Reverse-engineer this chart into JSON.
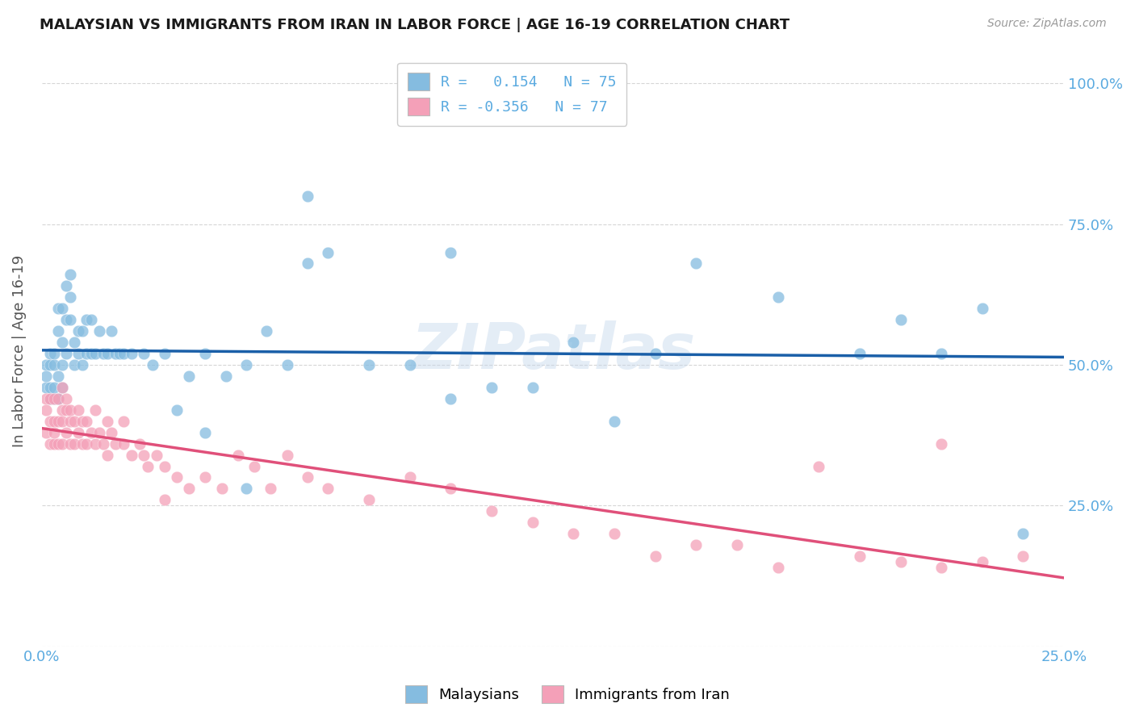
{
  "title": "MALAYSIAN VS IMMIGRANTS FROM IRAN IN LABOR FORCE | AGE 16-19 CORRELATION CHART",
  "source": "Source: ZipAtlas.com",
  "ylabel": "In Labor Force | Age 16-19",
  "xlim": [
    0.0,
    0.25
  ],
  "ylim": [
    0.0,
    1.05
  ],
  "blue_color": "#85bce0",
  "pink_color": "#f4a0b8",
  "trend_blue": "#1a5fa8",
  "trend_pink": "#e0507a",
  "axis_color": "#5aaae0",
  "watermark": "ZIPatlas",
  "legend_label_blue": "R =   0.154   N = 75",
  "legend_label_pink": "R = -0.356   N = 77",
  "bottom_label_blue": "Malaysians",
  "bottom_label_pink": "Immigrants from Iran",
  "blue_x": [
    0.001,
    0.001,
    0.001,
    0.002,
    0.002,
    0.002,
    0.002,
    0.003,
    0.003,
    0.003,
    0.003,
    0.004,
    0.004,
    0.004,
    0.004,
    0.005,
    0.005,
    0.005,
    0.005,
    0.006,
    0.006,
    0.006,
    0.007,
    0.007,
    0.007,
    0.008,
    0.008,
    0.009,
    0.009,
    0.01,
    0.01,
    0.011,
    0.011,
    0.012,
    0.012,
    0.013,
    0.014,
    0.015,
    0.016,
    0.017,
    0.018,
    0.019,
    0.02,
    0.022,
    0.025,
    0.027,
    0.03,
    0.033,
    0.036,
    0.04,
    0.045,
    0.05,
    0.055,
    0.06,
    0.065,
    0.07,
    0.08,
    0.09,
    0.1,
    0.11,
    0.12,
    0.13,
    0.14,
    0.15,
    0.16,
    0.18,
    0.2,
    0.21,
    0.22,
    0.23,
    0.065,
    0.1,
    0.24,
    0.04,
    0.05
  ],
  "blue_y": [
    0.46,
    0.5,
    0.48,
    0.46,
    0.5,
    0.52,
    0.44,
    0.46,
    0.5,
    0.44,
    0.52,
    0.44,
    0.48,
    0.56,
    0.6,
    0.46,
    0.5,
    0.54,
    0.6,
    0.52,
    0.58,
    0.64,
    0.58,
    0.62,
    0.66,
    0.5,
    0.54,
    0.52,
    0.56,
    0.5,
    0.56,
    0.52,
    0.58,
    0.52,
    0.58,
    0.52,
    0.56,
    0.52,
    0.52,
    0.56,
    0.52,
    0.52,
    0.52,
    0.52,
    0.52,
    0.5,
    0.52,
    0.42,
    0.48,
    0.52,
    0.48,
    0.5,
    0.56,
    0.5,
    0.68,
    0.7,
    0.5,
    0.5,
    0.44,
    0.46,
    0.46,
    0.54,
    0.4,
    0.52,
    0.68,
    0.62,
    0.52,
    0.58,
    0.52,
    0.6,
    0.8,
    0.7,
    0.2,
    0.38,
    0.28
  ],
  "pink_x": [
    0.001,
    0.001,
    0.001,
    0.002,
    0.002,
    0.002,
    0.003,
    0.003,
    0.003,
    0.003,
    0.004,
    0.004,
    0.004,
    0.005,
    0.005,
    0.005,
    0.005,
    0.006,
    0.006,
    0.006,
    0.007,
    0.007,
    0.007,
    0.008,
    0.008,
    0.009,
    0.009,
    0.01,
    0.01,
    0.011,
    0.011,
    0.012,
    0.013,
    0.014,
    0.015,
    0.016,
    0.017,
    0.018,
    0.02,
    0.022,
    0.024,
    0.026,
    0.028,
    0.03,
    0.033,
    0.036,
    0.04,
    0.044,
    0.048,
    0.052,
    0.056,
    0.06,
    0.065,
    0.07,
    0.08,
    0.09,
    0.1,
    0.11,
    0.12,
    0.13,
    0.14,
    0.15,
    0.16,
    0.17,
    0.18,
    0.2,
    0.21,
    0.22,
    0.23,
    0.24,
    0.013,
    0.016,
    0.02,
    0.025,
    0.03,
    0.19,
    0.22
  ],
  "pink_y": [
    0.42,
    0.38,
    0.44,
    0.4,
    0.36,
    0.44,
    0.36,
    0.4,
    0.44,
    0.38,
    0.36,
    0.4,
    0.44,
    0.36,
    0.4,
    0.42,
    0.46,
    0.38,
    0.42,
    0.44,
    0.36,
    0.4,
    0.42,
    0.36,
    0.4,
    0.38,
    0.42,
    0.36,
    0.4,
    0.36,
    0.4,
    0.38,
    0.36,
    0.38,
    0.36,
    0.34,
    0.38,
    0.36,
    0.4,
    0.34,
    0.36,
    0.32,
    0.34,
    0.32,
    0.3,
    0.28,
    0.3,
    0.28,
    0.34,
    0.32,
    0.28,
    0.34,
    0.3,
    0.28,
    0.26,
    0.3,
    0.28,
    0.24,
    0.22,
    0.2,
    0.2,
    0.16,
    0.18,
    0.18,
    0.14,
    0.16,
    0.15,
    0.14,
    0.15,
    0.16,
    0.42,
    0.4,
    0.36,
    0.34,
    0.26,
    0.32,
    0.36
  ]
}
